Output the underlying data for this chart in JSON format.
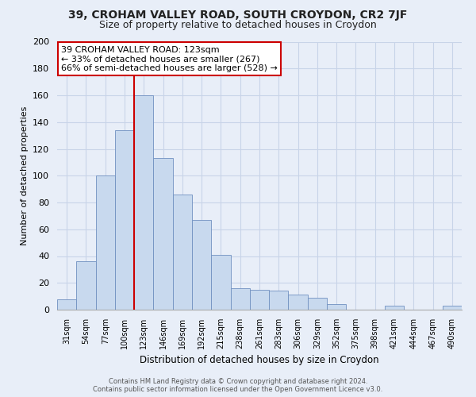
{
  "title1": "39, CROHAM VALLEY ROAD, SOUTH CROYDON, CR2 7JF",
  "title2": "Size of property relative to detached houses in Croydon",
  "xlabel": "Distribution of detached houses by size in Croydon",
  "ylabel": "Number of detached properties",
  "bar_labels": [
    "31sqm",
    "54sqm",
    "77sqm",
    "100sqm",
    "123sqm",
    "146sqm",
    "169sqm",
    "192sqm",
    "215sqm",
    "238sqm",
    "261sqm",
    "283sqm",
    "306sqm",
    "329sqm",
    "352sqm",
    "375sqm",
    "398sqm",
    "421sqm",
    "444sqm",
    "467sqm",
    "490sqm"
  ],
  "bar_values": [
    8,
    36,
    100,
    134,
    160,
    113,
    86,
    67,
    41,
    16,
    15,
    14,
    11,
    9,
    4,
    0,
    0,
    3,
    0,
    0,
    3
  ],
  "bar_color": "#c8d9ee",
  "bar_edge_color": "#7090c0",
  "vline_index": 4,
  "vline_color": "#cc0000",
  "ylim": [
    0,
    200
  ],
  "yticks": [
    0,
    20,
    40,
    60,
    80,
    100,
    120,
    140,
    160,
    180,
    200
  ],
  "annotation_title": "39 CROHAM VALLEY ROAD: 123sqm",
  "annotation_line1": "← 33% of detached houses are smaller (267)",
  "annotation_line2": "66% of semi-detached houses are larger (528) →",
  "annotation_box_facecolor": "#ffffff",
  "annotation_box_edgecolor": "#cc0000",
  "footer1": "Contains HM Land Registry data © Crown copyright and database right 2024.",
  "footer2": "Contains public sector information licensed under the Open Government Licence v3.0.",
  "bg_color": "#e8eef8",
  "grid_color": "#c8d4e8",
  "title1_fontsize": 10,
  "title2_fontsize": 9
}
